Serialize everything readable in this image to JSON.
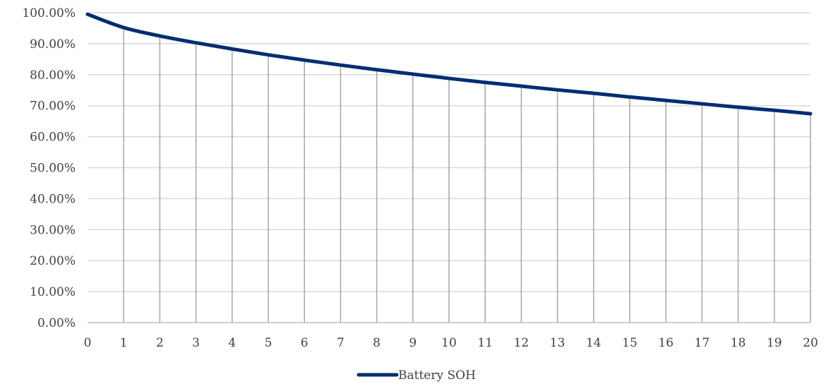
{
  "chart_data": {
    "type": "line",
    "title": "",
    "xlabel": "",
    "ylabel": "",
    "x": [
      0,
      1,
      2,
      3,
      4,
      5,
      6,
      7,
      8,
      9,
      10,
      11,
      12,
      13,
      14,
      15,
      16,
      17,
      18,
      19,
      20
    ],
    "x_tick_labels": [
      "0",
      "1",
      "2",
      "3",
      "4",
      "5",
      "6",
      "7",
      "8",
      "9",
      "10",
      "11",
      "12",
      "13",
      "14",
      "15",
      "16",
      "17",
      "18",
      "19",
      "20"
    ],
    "xlim": [
      0,
      20
    ],
    "ylim": [
      0,
      1
    ],
    "y_ticks": [
      0,
      0.1,
      0.2,
      0.3,
      0.4,
      0.5,
      0.6,
      0.7,
      0.8,
      0.9,
      1.0
    ],
    "y_tick_labels": [
      "0.00%",
      "10.00%",
      "20.00%",
      "30.00%",
      "40.00%",
      "50.00%",
      "60.00%",
      "70.00%",
      "80.00%",
      "90.00%",
      "100.00%"
    ],
    "series": [
      {
        "name": "Battery SOH",
        "color": "#002D72",
        "values": [
          0.995,
          0.952,
          0.925,
          0.903,
          0.883,
          0.864,
          0.847,
          0.831,
          0.816,
          0.802,
          0.788,
          0.775,
          0.763,
          0.751,
          0.74,
          0.728,
          0.717,
          0.706,
          0.695,
          0.685,
          0.674
        ]
      }
    ],
    "grid": {
      "horizontal": true,
      "vertical_drop_lines": true,
      "color": "#D9D9D9",
      "drop_line_color": "#A6A6A6"
    },
    "legend": {
      "position": "bottom",
      "entries": [
        "Battery SOH"
      ]
    }
  }
}
